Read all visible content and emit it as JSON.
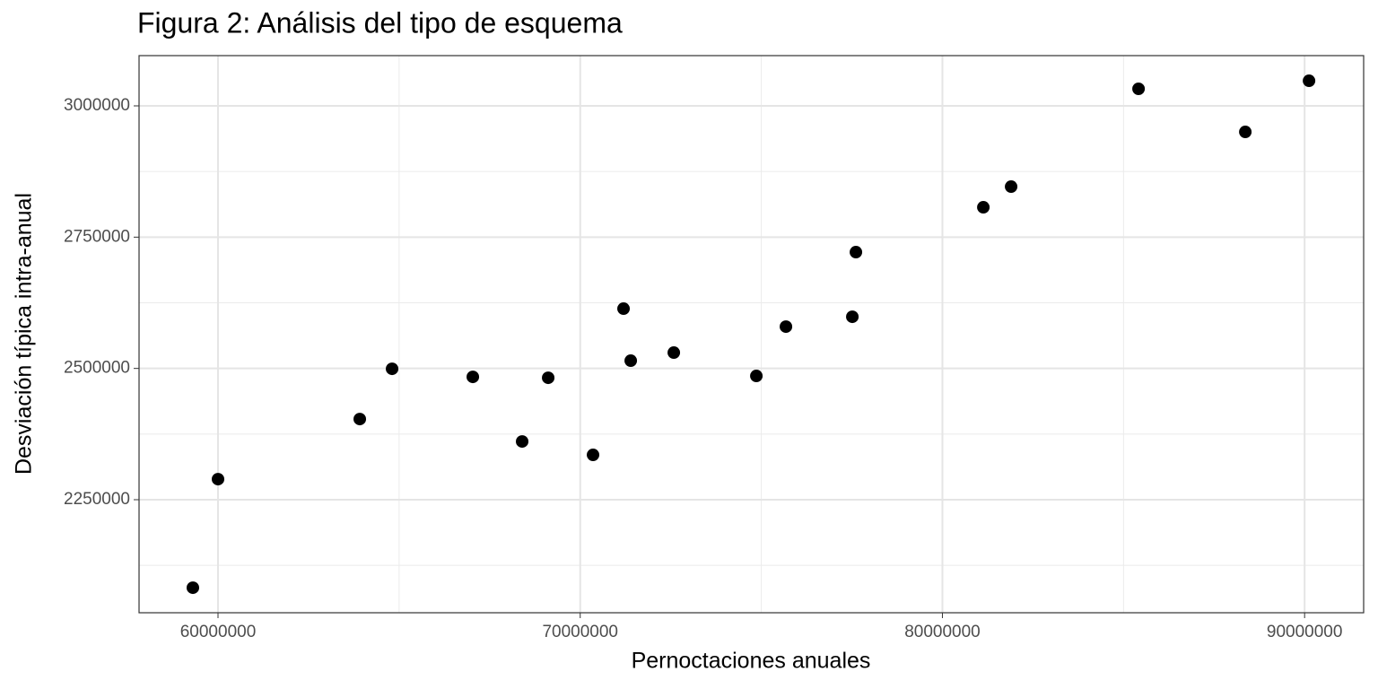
{
  "chart_data": {
    "type": "scatter",
    "title": "Figura 2: Análisis del tipo de esquema",
    "x_label": "Pernoctaciones anuales",
    "y_label": "Desviación típica intra-anual",
    "series": [
      {
        "name": null,
        "color": "#000000",
        "x": [
          59306000,
          60000000,
          63914000,
          64806000,
          67035000,
          68397000,
          69116000,
          70354000,
          71196000,
          71395000,
          72584000,
          74863000,
          75680000,
          77513000,
          77612000,
          81130000,
          81897000,
          85415000,
          88363000,
          90122000
        ],
        "values": [
          2082400,
          2289100,
          2403600,
          2499300,
          2483900,
          2360900,
          2482200,
          2335300,
          2613800,
          2514700,
          2530100,
          2485700,
          2579600,
          2598400,
          2721500,
          2806900,
          2846200,
          3032500,
          2950400,
          3047800
        ]
      }
    ],
    "xlim": [
      57820000,
      91630000
    ],
    "xticks": [
      60000000,
      70000000,
      80000000,
      90000000
    ],
    "ylim": [
      2034700,
      3095700
    ],
    "yticks": [
      2250000,
      2500000,
      2750000,
      3000000
    ],
    "grid": true
  }
}
